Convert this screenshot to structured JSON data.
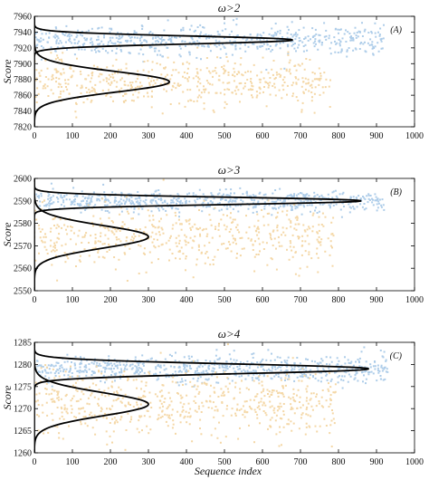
{
  "figure": {
    "xlabel": "Sequence index"
  },
  "colors": {
    "series_a": "#aecde9",
    "series_b": "#f4d7a6",
    "curve": "#000000"
  },
  "chart_data": [
    {
      "type": "scatter",
      "title": "ω>2",
      "tag": "(A)",
      "xlabel": "",
      "ylabel": "Score",
      "xlim": [
        0,
        1000
      ],
      "ylim": [
        7820,
        7960
      ],
      "xticks": [
        0,
        100,
        200,
        300,
        400,
        500,
        600,
        700,
        800,
        900,
        1000
      ],
      "yticks": [
        7820,
        7840,
        7860,
        7880,
        7900,
        7920,
        7940,
        7960
      ],
      "grid": false,
      "series": [
        {
          "color_key": "series_a",
          "x_range": [
            0,
            920
          ],
          "y_center": 7930,
          "y_spread": 12,
          "n": 620
        },
        {
          "color_key": "series_b",
          "x_range": [
            0,
            780
          ],
          "y_center": 7877,
          "y_spread": 20,
          "n": 520
        }
      ],
      "curves": [
        {
          "center": 7930,
          "sigma": 5,
          "peak_x": 680
        },
        {
          "center": 7877,
          "sigma": 13,
          "peak_x": 355
        }
      ]
    },
    {
      "type": "scatter",
      "title": "ω>3",
      "tag": "(B)",
      "xlabel": "",
      "ylabel": "Score",
      "xlim": [
        0,
        1000
      ],
      "ylim": [
        2550,
        2600
      ],
      "xticks": [
        0,
        100,
        200,
        300,
        400,
        500,
        600,
        700,
        800,
        900,
        1000
      ],
      "yticks": [
        2550,
        2560,
        2570,
        2580,
        2590,
        2600
      ],
      "grid": false,
      "series": [
        {
          "color_key": "series_a",
          "x_range": [
            0,
            920
          ],
          "y_center": 2590,
          "y_spread": 3,
          "n": 650
        },
        {
          "color_key": "series_b",
          "x_range": [
            0,
            790
          ],
          "y_center": 2574,
          "y_spread": 9,
          "n": 520
        }
      ],
      "curves": [
        {
          "center": 2590,
          "sigma": 1.6,
          "peak_x": 860
        },
        {
          "center": 2574,
          "sigma": 5,
          "peak_x": 300
        }
      ]
    },
    {
      "type": "scatter",
      "title": "ω>4",
      "tag": "(C)",
      "xlabel": "Sequence index",
      "ylabel": "Score",
      "xlim": [
        0,
        1000
      ],
      "ylim": [
        1260,
        1285
      ],
      "xticks": [
        0,
        100,
        200,
        300,
        400,
        500,
        600,
        700,
        800,
        900,
        1000
      ],
      "yticks": [
        1260,
        1265,
        1270,
        1275,
        1280,
        1285
      ],
      "grid": false,
      "series": [
        {
          "color_key": "series_a",
          "x_range": [
            0,
            930
          ],
          "y_center": 1279,
          "y_spread": 2,
          "n": 700
        },
        {
          "color_key": "series_b",
          "x_range": [
            0,
            800
          ],
          "y_center": 1271,
          "y_spread": 5,
          "n": 620
        }
      ],
      "curves": [
        {
          "center": 1279,
          "sigma": 1.1,
          "peak_x": 880
        },
        {
          "center": 1271,
          "sigma": 2.6,
          "peak_x": 300
        }
      ]
    }
  ]
}
